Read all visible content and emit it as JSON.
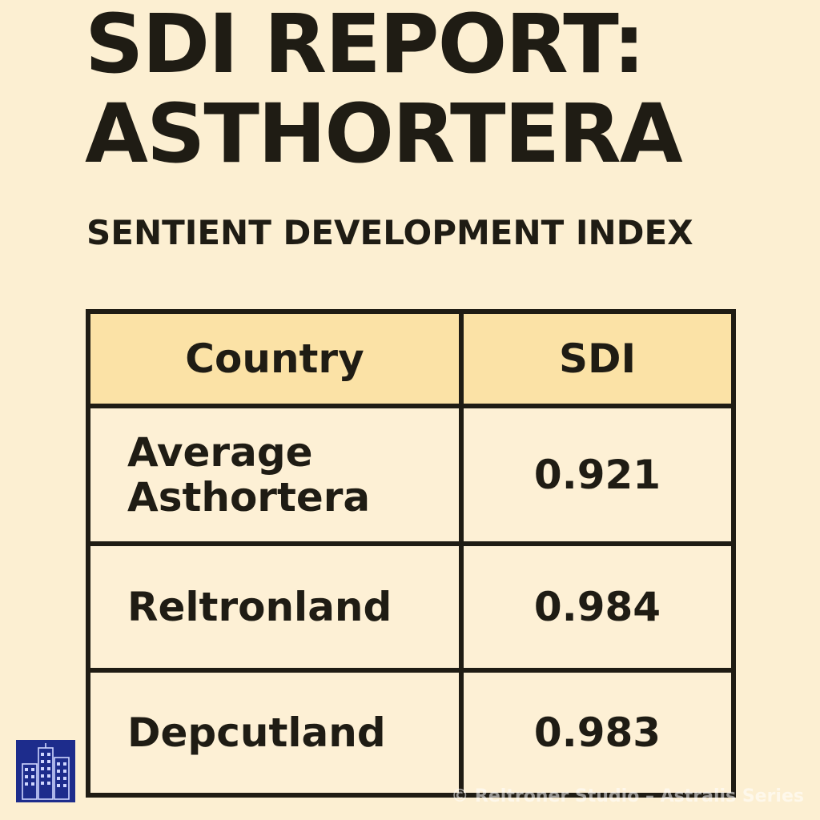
{
  "header": {
    "title_line1": "SDI REPORT:",
    "title_line2": "ASTHORTERA",
    "subtitle": "SENTIENT DEVELOPMENT INDEX"
  },
  "table": {
    "columns": [
      "Country",
      "SDI"
    ],
    "rows": [
      {
        "country_line1": "Average",
        "country_line2": "Asthortera",
        "sdi": "0.921"
      },
      {
        "country_line1": "Reltronland",
        "sdi": "0.984"
      },
      {
        "country_line1": "Depcutland",
        "sdi": "0.983"
      }
    ]
  },
  "logo": {
    "icon": "city-buildings-icon",
    "color": "#1d2c8c"
  },
  "watermark": "© Reltroner Studio – Astralis Series",
  "colors": {
    "background": "#fcefd2",
    "header_row": "#fbe2a6",
    "text": "#1f1c14"
  }
}
